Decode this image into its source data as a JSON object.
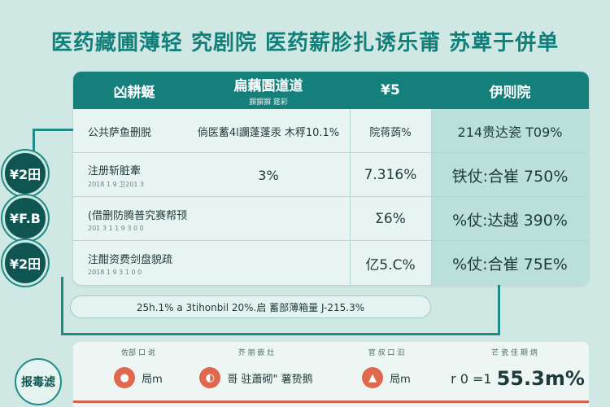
{
  "title": "医药藏圃薄轻 究剧院 医药薪胗扎诱乐莆 苏萆于併单",
  "table": {
    "header": {
      "col1": "凶耕蜒",
      "col2_main": "扁藕圄道道",
      "col2_sub": "摒摒摒 莛彩",
      "col3": "¥5",
      "col4": "伊则院"
    },
    "rows": [
      {
        "label": "公共萨鱼删脱",
        "sub": "",
        "col2": "倘医蓄4l讕蓬蓬汞 木稃10.1%",
        "col3": "院蒋蒟%",
        "col4": "214贵达瓷 T09%"
      },
      {
        "label": "注册斩脏牽",
        "sub": "2018 1 9 卫201 3",
        "col2": "3%",
        "col3": "7.316%",
        "col4": "铁仗:合崔 750%"
      },
      {
        "label": "(借删防腾普究赛帮顸",
        "sub": "201 3 1 1 9 3 0 0",
        "col2": "",
        "col3": "Σ6%",
        "col4": "%仗:达越 390%"
      },
      {
        "label": "注酣资费剑盘貌疏",
        "sub": "2018 1 9 3 1 0 0",
        "col2": "",
        "col3": "亿5.C%",
        "col4": "%仗:合崔 75E%"
      }
    ]
  },
  "circles": [
    "¥2田",
    "¥F.B",
    "¥2田"
  ],
  "summary": "25h.1% a 3tihonbil 20%.启 蓄部薄箱量 J-215.3%",
  "bottom": {
    "side_label": "报毒滤",
    "columns": [
      {
        "label": "佐部 口 说",
        "icon": "coin-icon",
        "icon_color": "#e0684f",
        "value": "局m"
      },
      {
        "label": "芥 丽 嵌 灶",
        "icon": "pill-icon",
        "icon_color": "#e0684f",
        "value": "哥 驻蕭砌\" 薯贽鹅"
      },
      {
        "label": "官 叔 口 汩",
        "icon": "drop-icon",
        "icon_color": "#e0684f",
        "value": "局m"
      },
      {
        "label": "芒 瓷 佳 期 炳",
        "icon": "",
        "icon_color": "",
        "value_prefix": "r 0 =1",
        "value": "55.3m%"
      }
    ]
  },
  "colors": {
    "accent": "#157f7b",
    "background": "#cfe8e3",
    "highlight": "#b9e0da",
    "warning": "#d9604a"
  }
}
